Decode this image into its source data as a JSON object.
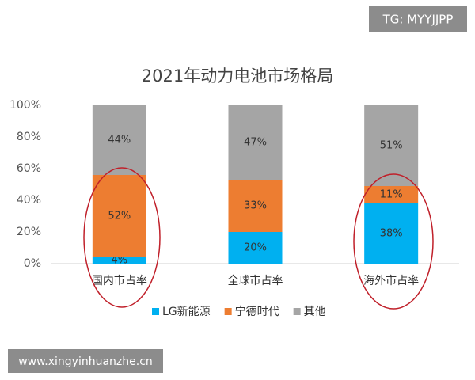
{
  "chart_data": {
    "type": "bar",
    "stacked": true,
    "title": "2021年动力电池市场格局",
    "categories": [
      "国内市占率",
      "全球市占率",
      "海外市占率"
    ],
    "series": [
      {
        "name": "LG新能源",
        "color": "#00b0f0",
        "values": [
          4,
          20,
          38
        ],
        "value_labels": [
          "4%",
          "20%",
          "38%"
        ]
      },
      {
        "name": "宁德时代",
        "color": "#ed7d31",
        "values": [
          52,
          33,
          11
        ],
        "value_labels": [
          "52%",
          "33%",
          "11%"
        ]
      },
      {
        "name": "其他",
        "color": "#a5a5a5",
        "values": [
          44,
          47,
          51
        ],
        "value_labels": [
          "44%",
          "47%",
          "51%"
        ]
      }
    ],
    "ylim": [
      0,
      100
    ],
    "yticks": [
      {
        "value": 0,
        "label": "0%"
      },
      {
        "value": 20,
        "label": "20%"
      },
      {
        "value": 40,
        "label": "40%"
      },
      {
        "value": 60,
        "label": "60%"
      },
      {
        "value": 80,
        "label": "80%"
      },
      {
        "value": 100,
        "label": "100%"
      }
    ],
    "grid": false,
    "legend": "bottom"
  },
  "watermarks": {
    "top": "TG: MYYJJPP",
    "bottom": "www.xingyinhuanzhe.cn"
  }
}
